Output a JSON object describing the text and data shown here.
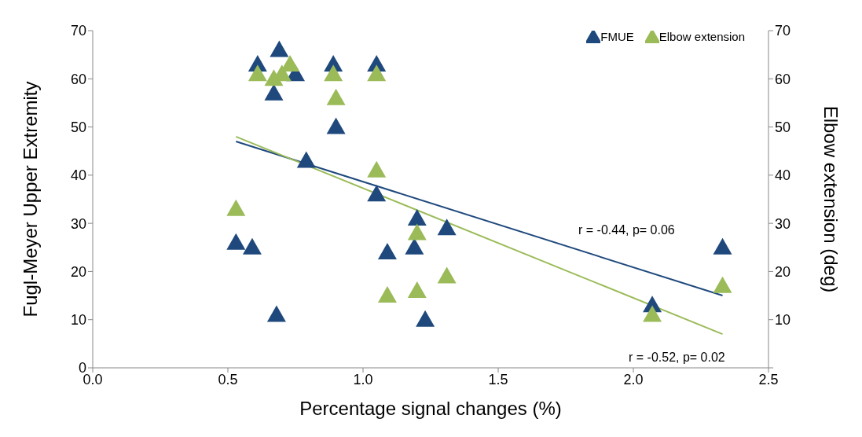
{
  "chart_data": {
    "type": "scatter",
    "xlabel": "Percentage signal changes (%)",
    "ylabel": "Fugl-Meyer Upper Extremity",
    "y2label": "Elbow extension (deg)",
    "xlim": [
      0,
      2.5
    ],
    "xticks": [
      {
        "value": 0,
        "label": "0.0"
      },
      {
        "value": 0.5,
        "label": "0.5"
      },
      {
        "value": 1,
        "label": "1.0"
      },
      {
        "value": 1.5,
        "label": "1.5"
      },
      {
        "value": 2,
        "label": "2.0"
      },
      {
        "value": 2.5,
        "label": "2.5"
      }
    ],
    "ylim": [
      0,
      70
    ],
    "yticks": [
      0,
      10,
      20,
      30,
      40,
      50,
      60,
      70
    ],
    "y2lim": [
      0,
      70
    ],
    "y2ticks": [
      {
        "value": 0,
        "label": null
      },
      10,
      20,
      30,
      40,
      50,
      60,
      70
    ],
    "legend": "top right",
    "series": [
      {
        "name": "FMUE",
        "color": "#1f497d",
        "marker": "triangle",
        "x": [
          0.53,
          0.59,
          0.61,
          0.67,
          0.68,
          0.69,
          0.75,
          0.79,
          0.89,
          0.9,
          1.05,
          1.05,
          1.09,
          1.2,
          1.19,
          1.23,
          1.31,
          2.07,
          2.33
        ],
        "values": [
          26,
          25,
          63,
          57,
          11,
          66,
          61,
          43,
          63,
          50,
          63,
          36,
          24,
          31,
          25,
          10,
          29,
          13,
          25
        ]
      },
      {
        "name": "Elbow extension",
        "color": "#9bbb59",
        "marker": "triangle",
        "axis": "y2",
        "x": [
          0.53,
          0.61,
          0.67,
          0.7,
          0.73,
          0.89,
          0.9,
          1.05,
          1.05,
          1.09,
          1.2,
          1.2,
          1.31,
          2.07,
          2.33
        ],
        "values": [
          33,
          61,
          60,
          61,
          63,
          61,
          56,
          61,
          41,
          15,
          28,
          16,
          19,
          11,
          17
        ]
      },
      {
        "type": "line",
        "color": "#1f497d",
        "x": [
          0.53,
          2.33
        ],
        "values": [
          47,
          15
        ]
      },
      {
        "type": "line",
        "color": "#9bbb59",
        "axis": "y2",
        "x": [
          0.53,
          2.33
        ],
        "values": [
          48,
          7
        ]
      }
    ],
    "annotations": [
      "r = -0.44, p= 0.06",
      "r = -0.52, p= 0.02"
    ]
  }
}
